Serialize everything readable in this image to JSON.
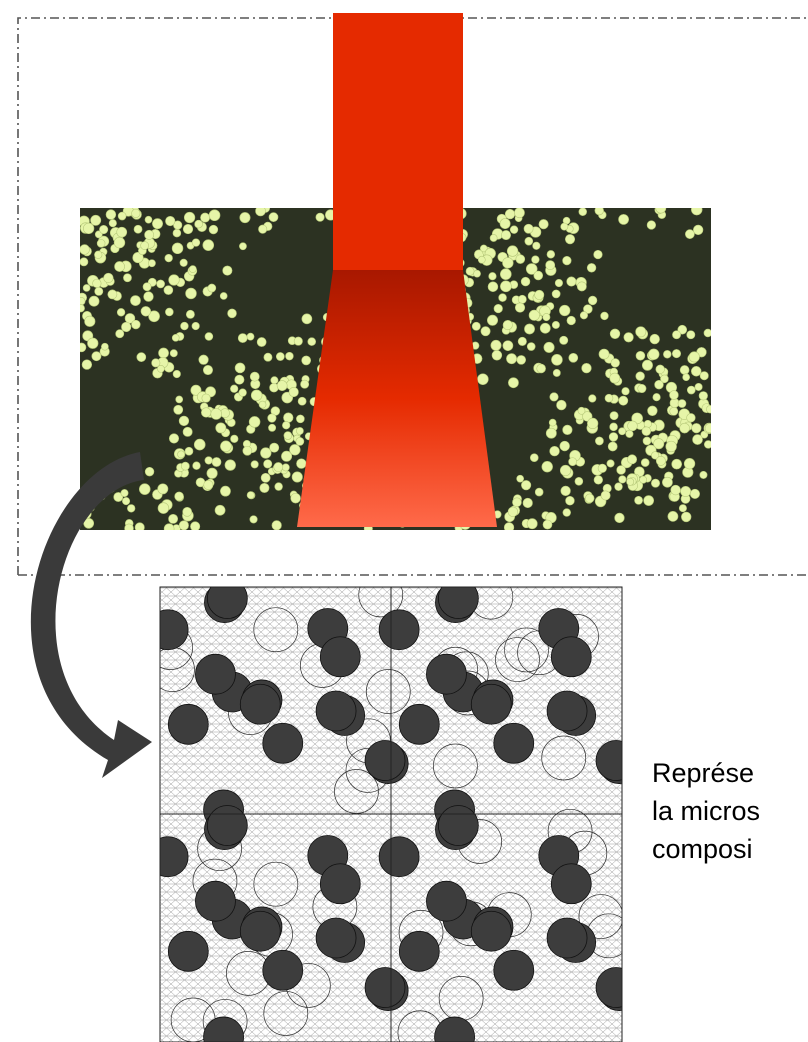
{
  "caption": {
    "lines": [
      "Représe",
      "la micros",
      "composi"
    ]
  }
}
